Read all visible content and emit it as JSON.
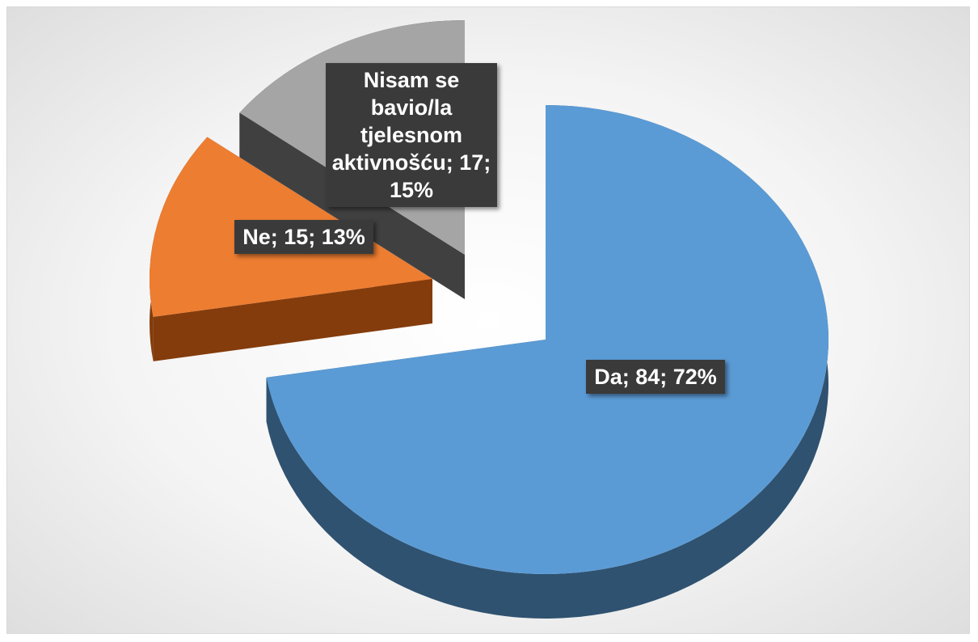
{
  "chart_data": {
    "type": "pie",
    "categories": [
      "Da",
      "Ne",
      "Nisam se bavio/la tjelesnom aktivnošću"
    ],
    "values": [
      84,
      15,
      17
    ],
    "value_labels": [
      "Da; 84; 72%",
      "Ne; 15; 13%",
      "Nisam se bavio/la tjelesnom aktivnošću; 17; 15%"
    ],
    "colors": [
      "#5b9bd5",
      "#ed7d31",
      "#a5a5a5"
    ],
    "side_colors": [
      "#2f5270",
      "#843c0c",
      "#404040"
    ],
    "exploded": true,
    "three_d": true
  }
}
